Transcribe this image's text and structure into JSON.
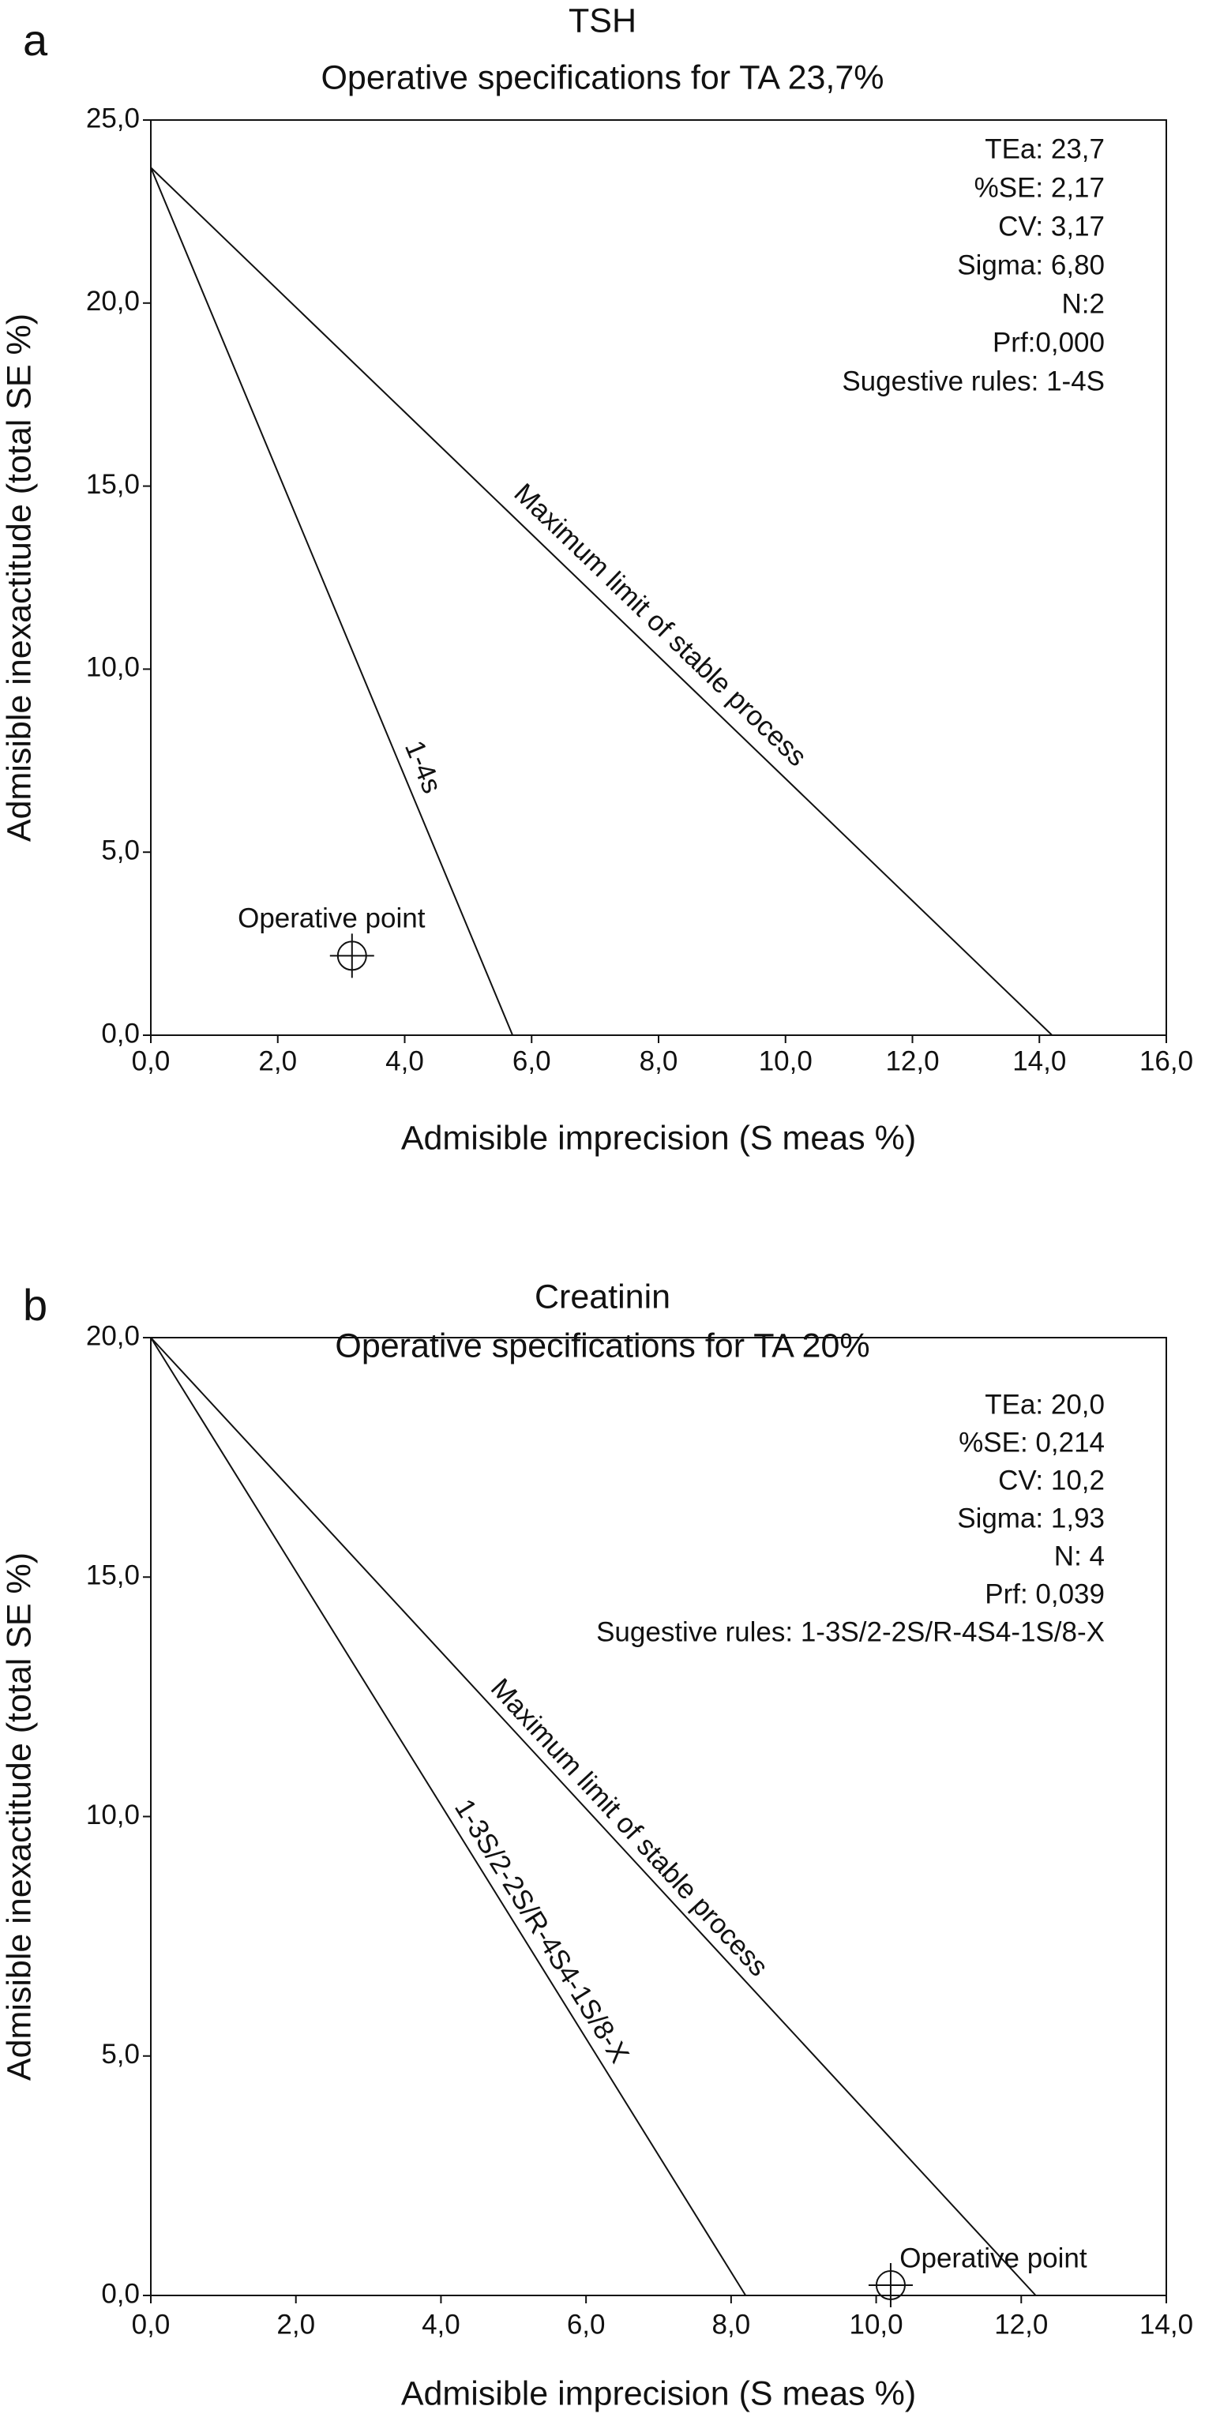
{
  "chart_data": [
    {
      "type": "line",
      "panel": "a",
      "title": "TSH",
      "subtitle": "Operative specifications for TA 23,7%",
      "x_label": "Admisible imprecision (S meas %)",
      "y_label": "Admisible inexactitude (total SE %)",
      "xlim": [
        0,
        16
      ],
      "xticks": [
        {
          "value": 0,
          "label": "0,0"
        },
        {
          "value": 2,
          "label": "2,0"
        },
        {
          "value": 4,
          "label": "4,0"
        },
        {
          "value": 6,
          "label": "6,0"
        },
        {
          "value": 8,
          "label": "8,0"
        },
        {
          "value": 10,
          "label": "10,0"
        },
        {
          "value": 12,
          "label": "12,0"
        },
        {
          "value": 14,
          "label": "14,0"
        },
        {
          "value": 16,
          "label": "16,0"
        }
      ],
      "ylim": [
        0,
        25
      ],
      "yticks": [
        {
          "value": 0,
          "label": "0,0"
        },
        {
          "value": 5,
          "label": "5,0"
        },
        {
          "value": 10,
          "label": "10,0"
        },
        {
          "value": 15,
          "label": "15,0"
        },
        {
          "value": 20,
          "label": "20,0"
        },
        {
          "value": 25,
          "label": "25,0"
        }
      ],
      "series": [
        {
          "name": "Maximum limit of stable process",
          "color": "#111111",
          "x": [
            0,
            14.2
          ],
          "values": [
            23.7,
            0
          ]
        },
        {
          "name": "1-4s",
          "color": "#111111",
          "x": [
            0,
            5.7
          ],
          "values": [
            23.7,
            0
          ]
        }
      ],
      "point": {
        "label": "Operative point",
        "x": 3.17,
        "y": 2.17
      },
      "info": [
        "TEa: 23,7",
        "%SE: 2,17",
        "CV: 3,17",
        "Sigma: 6,80",
        "N:2",
        "Prf:0,000",
        "Sugestive rules: 1-4S"
      ]
    },
    {
      "type": "line",
      "panel": "b",
      "title": "Creatinin",
      "subtitle": "Operative specifications for TA 20%",
      "x_label": "Admisible imprecision (S meas %)",
      "y_label": "Admisible inexactitude (total SE %)",
      "xlim": [
        0,
        14
      ],
      "xticks": [
        {
          "value": 0,
          "label": "0,0"
        },
        {
          "value": 2,
          "label": "2,0"
        },
        {
          "value": 4,
          "label": "4,0"
        },
        {
          "value": 6,
          "label": "6,0"
        },
        {
          "value": 8,
          "label": "8,0"
        },
        {
          "value": 10,
          "label": "10,0"
        },
        {
          "value": 12,
          "label": "12,0"
        },
        {
          "value": 14,
          "label": "14,0"
        }
      ],
      "ylim": [
        0,
        20
      ],
      "yticks": [
        {
          "value": 0,
          "label": "0,0"
        },
        {
          "value": 5,
          "label": "5,0"
        },
        {
          "value": 10,
          "label": "10,0"
        },
        {
          "value": 15,
          "label": "15,0"
        },
        {
          "value": 20,
          "label": "20,0"
        }
      ],
      "series": [
        {
          "name": "Maximum limit of stable process",
          "color": "#111111",
          "x": [
            0,
            12.2
          ],
          "values": [
            20,
            0
          ]
        },
        {
          "name": "1-3S/2-2S/R-4S4-1S/8-X",
          "color": "#111111",
          "x": [
            0,
            8.2
          ],
          "values": [
            20,
            0
          ]
        }
      ],
      "point": {
        "label": "Operative point",
        "x": 10.2,
        "y": 0.214
      },
      "info": [
        "TEa: 20,0",
        "%SE: 0,214",
        "CV: 10,2",
        "Sigma: 1,93",
        "N: 4",
        "Prf: 0,039",
        "Sugestive rules: 1-3S/2-2S/R-4S4-1S/8-X"
      ]
    }
  ]
}
